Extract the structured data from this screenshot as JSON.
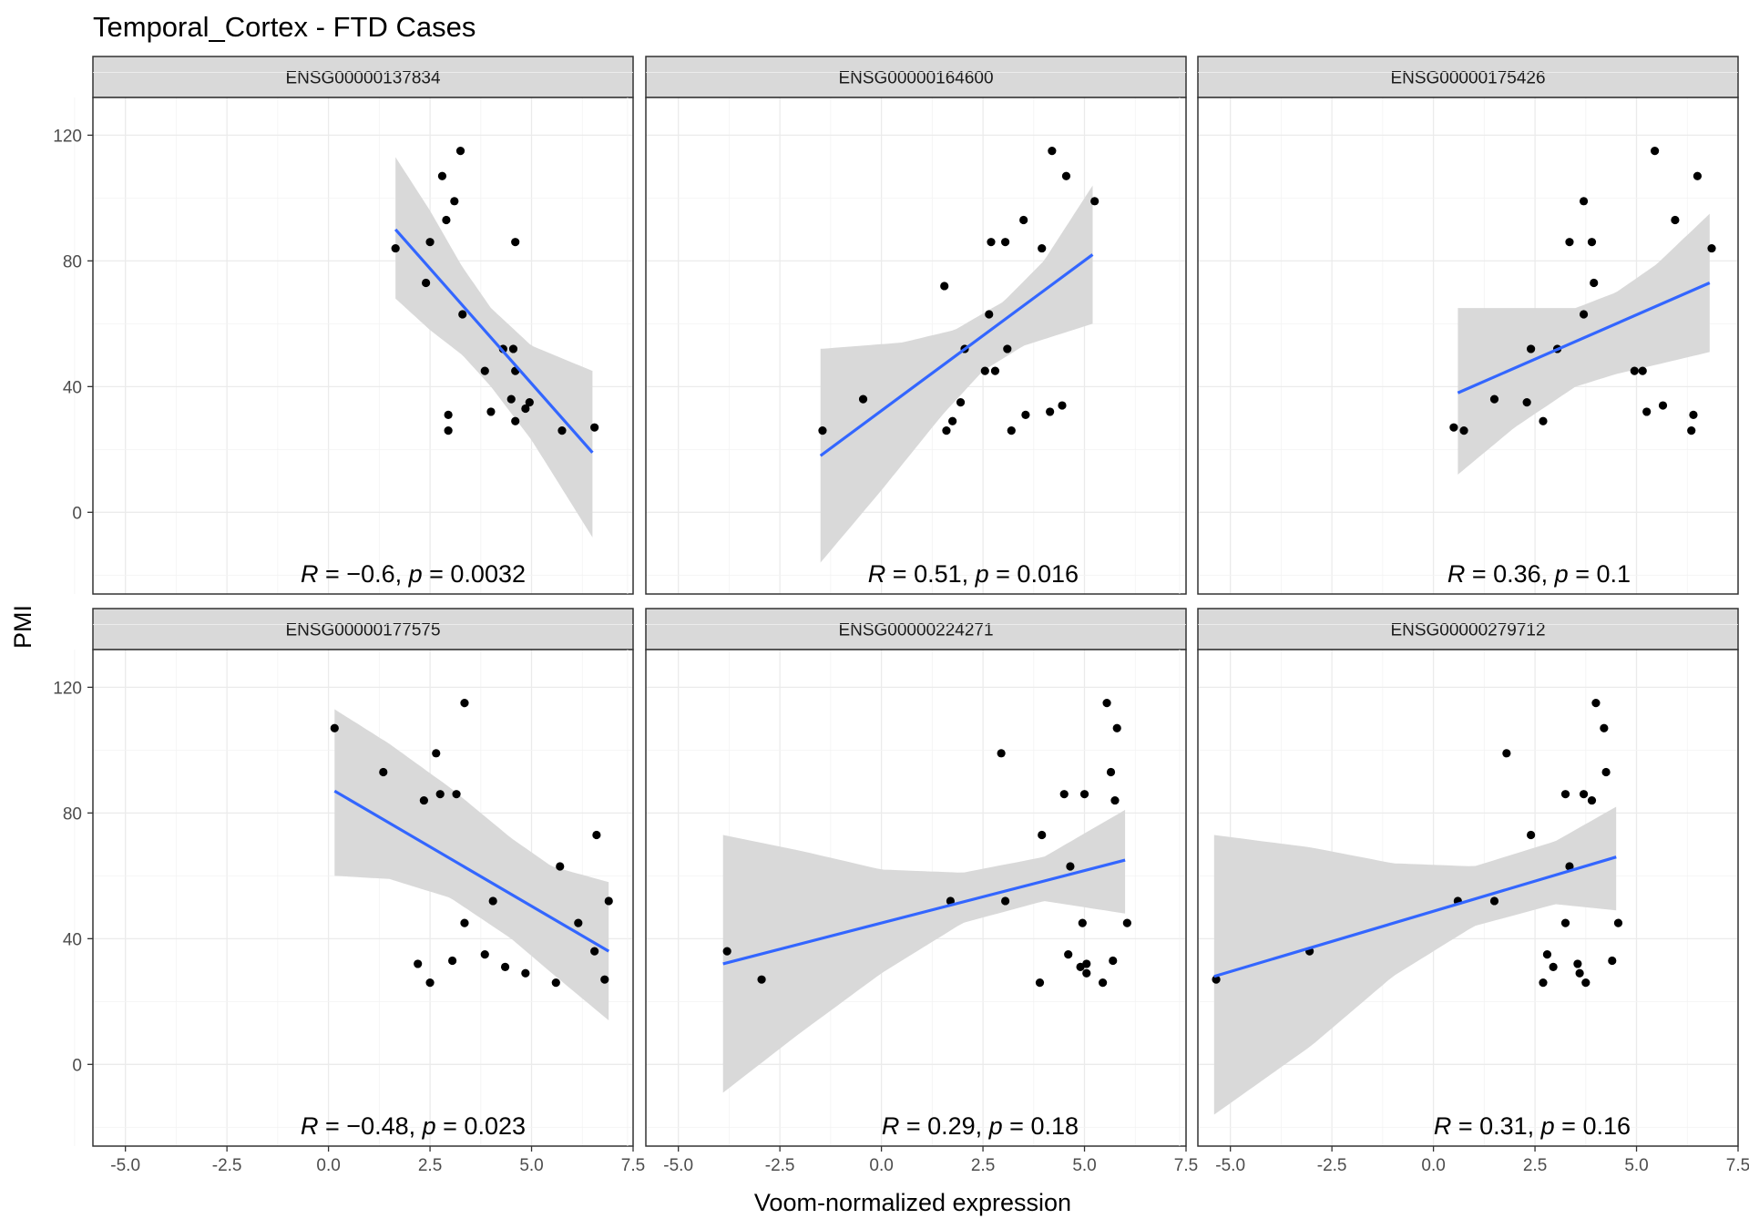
{
  "title": "Temporal_Cortex - FTD Cases",
  "xlabel": "Voom-normalized expression",
  "ylabel": "PMI",
  "colors": {
    "point": "#000000",
    "line": "#3366FF",
    "ribbon": "#D9D9D9",
    "strip": "#D9D9D9",
    "grid": "#EBEBEB",
    "frame": "#333333"
  },
  "chart_data": {
    "type": "scatter",
    "title": "Temporal_Cortex - FTD Cases",
    "xlabel": "Voom-normalized expression",
    "ylabel": "PMI",
    "xlim": [
      -5.8,
      7.5
    ],
    "ylim": [
      -26,
      132
    ],
    "xticks": [
      -5.0,
      -2.5,
      0.0,
      2.5,
      5.0,
      7.5
    ],
    "xtick_labels": [
      "-5.0",
      "-2.5",
      "0.0",
      "2.5",
      "5.0",
      "7.5"
    ],
    "yticks": [
      0,
      40,
      80,
      120
    ],
    "ytick_labels": [
      "0",
      "40",
      "80",
      "120"
    ],
    "grid": true,
    "facets": [
      {
        "strip": "ENSG00000137834",
        "stat": {
          "r": "−0.6",
          "p": "0.0032"
        },
        "points": [
          [
            1.65,
            84
          ],
          [
            2.4,
            73
          ],
          [
            2.5,
            86
          ],
          [
            2.8,
            107
          ],
          [
            2.9,
            93
          ],
          [
            3.1,
            99
          ],
          [
            3.25,
            115
          ],
          [
            3.3,
            63
          ],
          [
            2.95,
            31
          ],
          [
            2.95,
            26
          ],
          [
            3.85,
            45
          ],
          [
            4.0,
            32
          ],
          [
            4.3,
            52
          ],
          [
            4.55,
            52
          ],
          [
            4.5,
            36
          ],
          [
            4.6,
            86
          ],
          [
            4.6,
            45
          ],
          [
            4.6,
            29
          ],
          [
            4.85,
            33
          ],
          [
            4.95,
            35
          ],
          [
            5.75,
            26
          ],
          [
            6.55,
            27
          ]
        ],
        "fit": [
          [
            1.65,
            90
          ],
          [
            6.5,
            19
          ]
        ],
        "ci_upper": [
          [
            1.65,
            113
          ],
          [
            2.5,
            96
          ],
          [
            3.3,
            78
          ],
          [
            4.0,
            65
          ],
          [
            5.0,
            53
          ],
          [
            6.5,
            45
          ]
        ],
        "ci_lower": [
          [
            1.65,
            68
          ],
          [
            2.5,
            58
          ],
          [
            3.3,
            50
          ],
          [
            4.0,
            40
          ],
          [
            5.0,
            23
          ],
          [
            6.5,
            -8
          ]
        ]
      },
      {
        "strip": "ENSG00000164600",
        "stat": {
          "r": "0.51",
          "p": "0.016"
        },
        "points": [
          [
            -1.45,
            26
          ],
          [
            -0.45,
            36
          ],
          [
            1.55,
            72
          ],
          [
            1.6,
            26
          ],
          [
            1.75,
            29
          ],
          [
            1.95,
            35
          ],
          [
            2.05,
            52
          ],
          [
            2.55,
            45
          ],
          [
            2.65,
            63
          ],
          [
            2.7,
            86
          ],
          [
            2.8,
            45
          ],
          [
            3.05,
            86
          ],
          [
            3.1,
            52
          ],
          [
            3.2,
            26
          ],
          [
            3.5,
            93
          ],
          [
            3.55,
            31
          ],
          [
            3.95,
            84
          ],
          [
            4.15,
            32
          ],
          [
            4.2,
            115
          ],
          [
            4.45,
            34
          ],
          [
            4.55,
            107
          ],
          [
            5.25,
            99
          ]
        ],
        "fit": [
          [
            -1.5,
            18
          ],
          [
            5.2,
            82
          ]
        ],
        "ci_upper": [
          [
            -1.5,
            52
          ],
          [
            0.5,
            54
          ],
          [
            1.8,
            58
          ],
          [
            3.0,
            67
          ],
          [
            4.0,
            80
          ],
          [
            5.2,
            104
          ]
        ],
        "ci_lower": [
          [
            -1.5,
            -16
          ],
          [
            0.0,
            7
          ],
          [
            1.5,
            31
          ],
          [
            2.5,
            45
          ],
          [
            3.5,
            53
          ],
          [
            5.2,
            60
          ]
        ]
      },
      {
        "strip": "ENSG00000175426",
        "stat": {
          "r": "0.36",
          "p": "0.1"
        },
        "points": [
          [
            0.5,
            27
          ],
          [
            0.75,
            26
          ],
          [
            1.5,
            36
          ],
          [
            2.3,
            35
          ],
          [
            2.4,
            52
          ],
          [
            2.7,
            29
          ],
          [
            3.05,
            52
          ],
          [
            3.35,
            86
          ],
          [
            3.7,
            99
          ],
          [
            3.7,
            63
          ],
          [
            3.9,
            86
          ],
          [
            3.95,
            73
          ],
          [
            4.95,
            45
          ],
          [
            5.15,
            45
          ],
          [
            5.25,
            32
          ],
          [
            5.45,
            115
          ],
          [
            5.65,
            34
          ],
          [
            5.95,
            93
          ],
          [
            6.35,
            26
          ],
          [
            6.4,
            31
          ],
          [
            6.5,
            107
          ],
          [
            6.85,
            84
          ]
        ],
        "fit": [
          [
            0.6,
            38
          ],
          [
            6.8,
            73
          ]
        ],
        "ci_upper": [
          [
            0.6,
            65
          ],
          [
            2.0,
            65
          ],
          [
            3.5,
            65
          ],
          [
            4.5,
            70
          ],
          [
            5.5,
            79
          ],
          [
            6.8,
            95
          ]
        ],
        "ci_lower": [
          [
            0.6,
            12
          ],
          [
            2.0,
            27
          ],
          [
            3.5,
            40
          ],
          [
            4.5,
            44
          ],
          [
            5.5,
            47
          ],
          [
            6.8,
            51
          ]
        ]
      },
      {
        "strip": "ENSG00000177575",
        "stat": {
          "r": "−0.48",
          "p": "0.023"
        },
        "points": [
          [
            0.15,
            107
          ],
          [
            1.35,
            93
          ],
          [
            2.2,
            32
          ],
          [
            2.35,
            84
          ],
          [
            2.5,
            26
          ],
          [
            2.65,
            99
          ],
          [
            2.75,
            86
          ],
          [
            3.05,
            33
          ],
          [
            3.15,
            86
          ],
          [
            3.35,
            115
          ],
          [
            3.35,
            45
          ],
          [
            3.85,
            35
          ],
          [
            4.05,
            52
          ],
          [
            4.35,
            31
          ],
          [
            4.85,
            29
          ],
          [
            5.6,
            26
          ],
          [
            5.7,
            63
          ],
          [
            6.15,
            45
          ],
          [
            6.55,
            36
          ],
          [
            6.6,
            73
          ],
          [
            6.8,
            27
          ],
          [
            6.9,
            52
          ]
        ],
        "fit": [
          [
            0.15,
            87
          ],
          [
            6.9,
            36
          ]
        ],
        "ci_upper": [
          [
            0.15,
            113
          ],
          [
            1.5,
            102
          ],
          [
            3.0,
            88
          ],
          [
            4.5,
            72
          ],
          [
            5.5,
            63
          ],
          [
            6.9,
            58
          ]
        ],
        "ci_lower": [
          [
            0.15,
            60
          ],
          [
            1.5,
            59
          ],
          [
            3.0,
            53
          ],
          [
            4.5,
            40
          ],
          [
            5.5,
            29
          ],
          [
            6.9,
            14
          ]
        ]
      },
      {
        "strip": "ENSG00000224271",
        "stat": {
          "r": "0.29",
          "p": "0.18"
        },
        "points": [
          [
            -3.8,
            36
          ],
          [
            -2.95,
            27
          ],
          [
            1.7,
            52
          ],
          [
            2.95,
            99
          ],
          [
            3.05,
            52
          ],
          [
            3.9,
            26
          ],
          [
            3.95,
            73
          ],
          [
            4.5,
            86
          ],
          [
            4.6,
            35
          ],
          [
            4.65,
            63
          ],
          [
            4.9,
            31
          ],
          [
            4.95,
            45
          ],
          [
            5.0,
            86
          ],
          [
            5.05,
            32
          ],
          [
            5.05,
            29
          ],
          [
            5.45,
            26
          ],
          [
            5.55,
            115
          ],
          [
            5.65,
            93
          ],
          [
            5.7,
            33
          ],
          [
            5.75,
            84
          ],
          [
            5.8,
            107
          ],
          [
            6.05,
            45
          ]
        ],
        "fit": [
          [
            -3.9,
            32
          ],
          [
            6.0,
            65
          ]
        ],
        "ci_upper": [
          [
            -3.9,
            73
          ],
          [
            -2.0,
            68
          ],
          [
            0.0,
            62
          ],
          [
            2.0,
            61
          ],
          [
            4.0,
            66
          ],
          [
            6.0,
            81
          ]
        ],
        "ci_lower": [
          [
            -3.9,
            -9
          ],
          [
            -2.0,
            10
          ],
          [
            0.0,
            29
          ],
          [
            2.0,
            45
          ],
          [
            4.0,
            52
          ],
          [
            6.0,
            48
          ]
        ]
      },
      {
        "strip": "ENSG00000279712",
        "stat": {
          "r": "0.31",
          "p": "0.16"
        },
        "points": [
          [
            -5.35,
            27
          ],
          [
            -3.05,
            36
          ],
          [
            0.6,
            52
          ],
          [
            1.5,
            52
          ],
          [
            1.8,
            99
          ],
          [
            2.4,
            73
          ],
          [
            2.7,
            26
          ],
          [
            2.8,
            35
          ],
          [
            2.95,
            31
          ],
          [
            3.25,
            86
          ],
          [
            3.25,
            45
          ],
          [
            3.35,
            63
          ],
          [
            3.55,
            32
          ],
          [
            3.6,
            29
          ],
          [
            3.7,
            86
          ],
          [
            3.75,
            26
          ],
          [
            3.9,
            84
          ],
          [
            4.0,
            115
          ],
          [
            4.2,
            107
          ],
          [
            4.25,
            93
          ],
          [
            4.4,
            33
          ],
          [
            4.55,
            45
          ]
        ],
        "fit": [
          [
            -5.4,
            28
          ],
          [
            4.5,
            66
          ]
        ],
        "ci_upper": [
          [
            -5.4,
            73
          ],
          [
            -3.0,
            69
          ],
          [
            -1.0,
            64
          ],
          [
            1.0,
            63
          ],
          [
            3.0,
            71
          ],
          [
            4.5,
            82
          ]
        ],
        "ci_lower": [
          [
            -5.4,
            -16
          ],
          [
            -3.0,
            6
          ],
          [
            -1.0,
            28
          ],
          [
            1.0,
            44
          ],
          [
            3.0,
            51
          ],
          [
            4.5,
            49
          ]
        ]
      }
    ]
  }
}
